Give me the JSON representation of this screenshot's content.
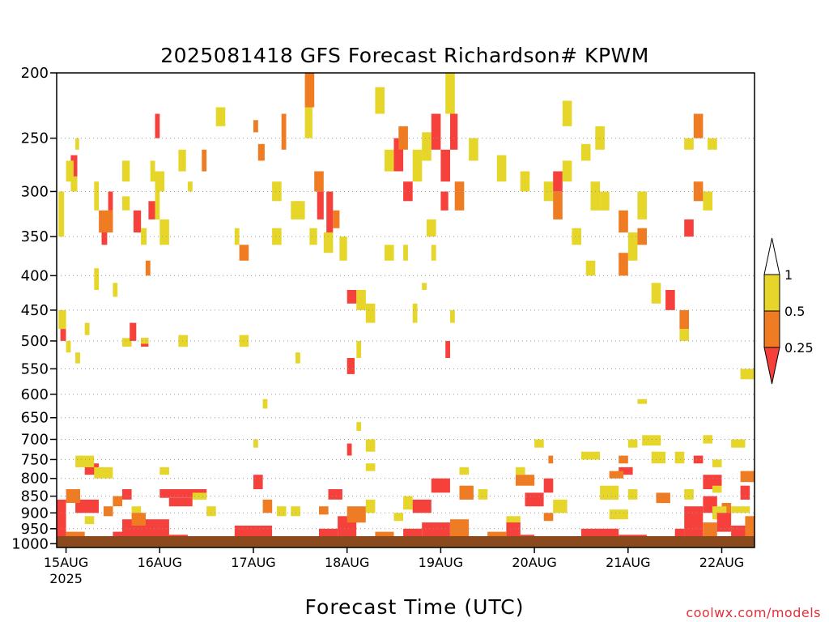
{
  "chart_data": {
    "type": "heatmap",
    "title": "2025081418 GFS Forecast Richardson# KPWM",
    "xlabel": "Forecast Time (UTC)",
    "ylabel": "",
    "credit": "coolwx.com/models",
    "y_scale": "log-pressure (inverted)",
    "ylim_hPa": [
      1013,
      200
    ],
    "xlim_day_offset": [
      -0.1,
      7.35
    ],
    "grid": "dotted horizontal lines at pressure levels",
    "y_ticks": [
      200,
      250,
      300,
      350,
      400,
      450,
      500,
      550,
      600,
      650,
      700,
      750,
      800,
      850,
      900,
      950,
      1000
    ],
    "x_ticks": [
      {
        "day": 0,
        "label": "15AUG",
        "sublabel": "2025"
      },
      {
        "day": 1,
        "label": "16AUG"
      },
      {
        "day": 2,
        "label": "17AUG"
      },
      {
        "day": 3,
        "label": "18AUG"
      },
      {
        "day": 4,
        "label": "19AUG"
      },
      {
        "day": 5,
        "label": "20AUG"
      },
      {
        "day": 6,
        "label": "21AUG"
      },
      {
        "day": 7,
        "label": "22AUG"
      }
    ],
    "colorbar": {
      "levels": [
        "1",
        "0.5",
        "0.25"
      ],
      "bins": [
        {
          "range": "> 1",
          "color": "#ffffff"
        },
        {
          "range": "0.5 - 1",
          "color": "#e6d62a"
        },
        {
          "range": "0.25 - 0.5",
          "color": "#ef7b22"
        },
        {
          "range": "< 0.25",
          "color": "#f5403c"
        }
      ]
    },
    "ground_color": "#8b4a1e",
    "cells": [
      [
        -0.08,
        -0.02,
        300,
        350,
        "Y"
      ],
      [
        -0.08,
        0.0,
        450,
        480,
        "Y"
      ],
      [
        -0.06,
        0.0,
        480,
        500,
        "R"
      ],
      [
        0.05,
        0.12,
        265,
        285,
        "R"
      ],
      [
        0.0,
        0.08,
        270,
        290,
        "Y"
      ],
      [
        0.05,
        0.12,
        285,
        300,
        "Y"
      ],
      [
        0.1,
        0.14,
        250,
        260,
        "Y"
      ],
      [
        0.3,
        0.35,
        290,
        320,
        "Y"
      ],
      [
        0.35,
        0.5,
        320,
        345,
        "O"
      ],
      [
        0.45,
        0.5,
        300,
        320,
        "R"
      ],
      [
        0.38,
        0.44,
        345,
        360,
        "R"
      ],
      [
        0.6,
        0.68,
        270,
        290,
        "Y"
      ],
      [
        0.6,
        0.68,
        305,
        320,
        "Y"
      ],
      [
        0.72,
        0.8,
        320,
        345,
        "R"
      ],
      [
        0.8,
        0.86,
        340,
        360,
        "Y"
      ],
      [
        0.88,
        0.95,
        310,
        330,
        "R"
      ],
      [
        0.9,
        0.95,
        270,
        290,
        "Y"
      ],
      [
        0.95,
        1.0,
        300,
        330,
        "Y"
      ],
      [
        0.95,
        1.0,
        230,
        250,
        "R"
      ],
      [
        0.85,
        0.9,
        380,
        400,
        "O"
      ],
      [
        1.2,
        1.28,
        260,
        280,
        "Y"
      ],
      [
        0.8,
        0.88,
        495,
        510,
        "R"
      ],
      [
        0.8,
        0.88,
        495,
        505,
        "Y"
      ],
      [
        0.6,
        0.7,
        495,
        510,
        "Y"
      ],
      [
        0.68,
        0.75,
        470,
        500,
        "R"
      ],
      [
        1.2,
        1.3,
        490,
        510,
        "Y"
      ],
      [
        0.0,
        0.05,
        500,
        520,
        "Y"
      ],
      [
        0.1,
        0.15,
        520,
        540,
        "Y"
      ],
      [
        0.3,
        0.35,
        390,
        420,
        "Y"
      ],
      [
        1.6,
        1.7,
        225,
        240,
        "Y"
      ],
      [
        1.85,
        1.95,
        490,
        510,
        "Y"
      ],
      [
        2.0,
        2.05,
        235,
        245,
        "O"
      ],
      [
        2.05,
        2.12,
        255,
        270,
        "O"
      ],
      [
        2.4,
        2.5,
        310,
        330,
        "Y"
      ],
      [
        2.2,
        2.3,
        290,
        310,
        "Y"
      ],
      [
        2.3,
        2.35,
        230,
        260,
        "O"
      ],
      [
        2.45,
        2.55,
        310,
        330,
        "Y"
      ],
      [
        2.55,
        2.63,
        225,
        250,
        "Y"
      ],
      [
        2.55,
        2.65,
        200,
        225,
        "O"
      ],
      [
        2.65,
        2.75,
        280,
        300,
        "O"
      ],
      [
        2.68,
        2.75,
        300,
        330,
        "R"
      ],
      [
        2.6,
        2.68,
        340,
        360,
        "Y"
      ],
      [
        2.75,
        2.85,
        345,
        370,
        "Y"
      ],
      [
        2.78,
        2.85,
        300,
        345,
        "R"
      ],
      [
        2.85,
        2.92,
        320,
        340,
        "O"
      ],
      [
        2.92,
        3.0,
        350,
        380,
        "Y"
      ],
      [
        3.0,
        3.1,
        420,
        440,
        "R"
      ],
      [
        3.1,
        3.2,
        420,
        450,
        "Y"
      ],
      [
        3.2,
        3.3,
        440,
        470,
        "Y"
      ],
      [
        3.1,
        3.15,
        500,
        530,
        "Y"
      ],
      [
        3.0,
        3.08,
        530,
        560,
        "R"
      ],
      [
        3.3,
        3.4,
        210,
        230,
        "Y"
      ],
      [
        3.4,
        3.5,
        260,
        280,
        "Y"
      ],
      [
        3.5,
        3.6,
        250,
        280,
        "R"
      ],
      [
        3.55,
        3.65,
        240,
        260,
        "O"
      ],
      [
        3.6,
        3.7,
        290,
        310,
        "R"
      ],
      [
        3.7,
        3.8,
        260,
        290,
        "Y"
      ],
      [
        3.8,
        3.9,
        245,
        270,
        "Y"
      ],
      [
        3.9,
        4.0,
        230,
        260,
        "R"
      ],
      [
        4.0,
        4.1,
        260,
        290,
        "R"
      ],
      [
        4.05,
        4.15,
        200,
        230,
        "Y"
      ],
      [
        4.1,
        4.18,
        230,
        260,
        "R"
      ],
      [
        4.15,
        4.25,
        290,
        320,
        "O"
      ],
      [
        4.0,
        4.08,
        300,
        320,
        "R"
      ],
      [
        4.05,
        4.1,
        500,
        530,
        "R"
      ],
      [
        3.85,
        3.95,
        330,
        350,
        "Y"
      ],
      [
        3.6,
        3.65,
        360,
        380,
        "Y"
      ],
      [
        4.3,
        4.4,
        250,
        270,
        "Y"
      ],
      [
        4.6,
        4.7,
        265,
        290,
        "Y"
      ],
      [
        4.85,
        4.95,
        280,
        300,
        "Y"
      ],
      [
        5.1,
        5.2,
        290,
        310,
        "Y"
      ],
      [
        5.2,
        5.3,
        280,
        300,
        "R"
      ],
      [
        5.2,
        5.3,
        300,
        330,
        "O"
      ],
      [
        5.3,
        5.4,
        220,
        240,
        "Y"
      ],
      [
        5.3,
        5.4,
        270,
        290,
        "Y"
      ],
      [
        5.5,
        5.6,
        255,
        270,
        "Y"
      ],
      [
        5.65,
        5.75,
        240,
        260,
        "Y"
      ],
      [
        5.7,
        5.8,
        300,
        320,
        "Y"
      ],
      [
        5.9,
        6.0,
        320,
        345,
        "O"
      ],
      [
        6.0,
        6.1,
        345,
        380,
        "Y"
      ],
      [
        6.1,
        6.2,
        300,
        330,
        "Y"
      ],
      [
        6.1,
        6.2,
        340,
        360,
        "O"
      ],
      [
        6.25,
        6.35,
        410,
        440,
        "Y"
      ],
      [
        6.4,
        6.5,
        420,
        450,
        "R"
      ],
      [
        6.6,
        6.7,
        330,
        350,
        "R"
      ],
      [
        6.7,
        6.8,
        290,
        310,
        "O"
      ],
      [
        6.7,
        6.8,
        230,
        250,
        "O"
      ],
      [
        6.6,
        6.7,
        250,
        260,
        "Y"
      ],
      [
        6.8,
        6.9,
        300,
        320,
        "Y"
      ],
      [
        6.85,
        6.95,
        250,
        260,
        "Y"
      ],
      [
        7.2,
        7.35,
        550,
        570,
        "Y"
      ],
      [
        6.55,
        6.65,
        450,
        480,
        "O"
      ],
      [
        6.55,
        6.65,
        480,
        500,
        "Y"
      ],
      [
        5.4,
        5.5,
        340,
        360,
        "Y"
      ],
      [
        5.6,
        5.7,
        290,
        320,
        "Y"
      ],
      [
        1.3,
        1.35,
        290,
        300,
        "Y"
      ],
      [
        1.45,
        1.5,
        260,
        280,
        "O"
      ],
      [
        1.85,
        1.95,
        360,
        380,
        "O"
      ],
      [
        2.2,
        2.3,
        340,
        360,
        "Y"
      ],
      [
        2.45,
        2.5,
        520,
        540,
        "Y"
      ],
      [
        0.95,
        1.05,
        280,
        300,
        "Y"
      ],
      [
        1.0,
        1.1,
        330,
        360,
        "Y"
      ],
      [
        5.55,
        5.65,
        380,
        400,
        "Y"
      ],
      [
        5.9,
        6.0,
        370,
        400,
        "O"
      ],
      [
        3.4,
        3.5,
        360,
        380,
        "Y"
      ],
      [
        3.8,
        3.85,
        410,
        420,
        "Y"
      ],
      [
        3.7,
        3.75,
        440,
        470,
        "Y"
      ],
      [
        3.9,
        3.95,
        360,
        380,
        "Y"
      ],
      [
        4.1,
        4.15,
        450,
        470,
        "Y"
      ],
      [
        1.8,
        1.85,
        340,
        360,
        "Y"
      ],
      [
        0.5,
        0.55,
        410,
        430,
        "Y"
      ],
      [
        0.2,
        0.25,
        470,
        490,
        "Y"
      ],
      [
        2.0,
        2.05,
        700,
        720,
        "Y"
      ],
      [
        3.1,
        3.15,
        660,
        680,
        "Y"
      ],
      [
        3.2,
        3.3,
        700,
        730,
        "Y"
      ],
      [
        3.0,
        3.05,
        710,
        740,
        "R"
      ],
      [
        2.1,
        2.15,
        610,
        630,
        "Y"
      ],
      [
        0.2,
        0.35,
        760,
        790,
        "R"
      ],
      [
        0.1,
        0.3,
        740,
        770,
        "Y"
      ],
      [
        0.3,
        0.5,
        770,
        800,
        "Y"
      ],
      [
        1.0,
        1.1,
        770,
        790,
        "Y"
      ],
      [
        3.2,
        3.3,
        760,
        780,
        "Y"
      ],
      [
        4.8,
        4.9,
        770,
        790,
        "Y"
      ],
      [
        5.0,
        5.1,
        700,
        720,
        "Y"
      ],
      [
        5.15,
        5.2,
        740,
        760,
        "O"
      ],
      [
        5.5,
        5.7,
        730,
        750,
        "Y"
      ],
      [
        5.9,
        6.0,
        740,
        760,
        "O"
      ],
      [
        6.0,
        6.1,
        700,
        720,
        "Y"
      ],
      [
        6.15,
        6.35,
        690,
        715,
        "Y"
      ],
      [
        6.25,
        6.4,
        730,
        760,
        "Y"
      ],
      [
        6.5,
        6.6,
        730,
        760,
        "Y"
      ],
      [
        6.1,
        6.2,
        610,
        620,
        "Y"
      ],
      [
        7.1,
        7.25,
        700,
        720,
        "Y"
      ],
      [
        6.7,
        6.8,
        740,
        760,
        "R"
      ],
      [
        6.8,
        6.9,
        690,
        710,
        "Y"
      ],
      [
        6.9,
        7.0,
        750,
        770,
        "Y"
      ],
      [
        7.2,
        7.35,
        780,
        810,
        "O"
      ],
      [
        4.2,
        4.3,
        770,
        790,
        "Y"
      ],
      [
        5.9,
        6.05,
        770,
        790,
        "R"
      ],
      [
        0.5,
        0.6,
        850,
        880,
        "O"
      ],
      [
        0.6,
        0.7,
        830,
        860,
        "R"
      ],
      [
        1.0,
        1.5,
        830,
        855,
        "R"
      ],
      [
        1.1,
        1.35,
        855,
        880,
        "R"
      ],
      [
        1.35,
        1.5,
        840,
        860,
        "Y"
      ],
      [
        2.0,
        2.1,
        790,
        830,
        "R"
      ],
      [
        2.1,
        2.2,
        860,
        900,
        "O"
      ],
      [
        2.25,
        2.35,
        880,
        910,
        "Y"
      ],
      [
        2.8,
        2.95,
        830,
        860,
        "R"
      ],
      [
        3.2,
        3.3,
        860,
        900,
        "Y"
      ],
      [
        3.6,
        3.7,
        850,
        890,
        "Y"
      ],
      [
        3.9,
        4.1,
        800,
        840,
        "R"
      ],
      [
        3.7,
        3.9,
        860,
        900,
        "R"
      ],
      [
        4.2,
        4.35,
        820,
        860,
        "O"
      ],
      [
        4.4,
        4.5,
        830,
        860,
        "Y"
      ],
      [
        4.8,
        5.0,
        790,
        820,
        "O"
      ],
      [
        4.9,
        5.1,
        840,
        880,
        "R"
      ],
      [
        5.1,
        5.2,
        800,
        840,
        "R"
      ],
      [
        5.2,
        5.35,
        860,
        900,
        "Y"
      ],
      [
        5.7,
        5.9,
        820,
        860,
        "Y"
      ],
      [
        6.0,
        6.1,
        830,
        860,
        "Y"
      ],
      [
        6.3,
        6.45,
        840,
        870,
        "O"
      ],
      [
        6.6,
        6.7,
        830,
        860,
        "Y"
      ],
      [
        6.8,
        7.0,
        790,
        830,
        "R"
      ],
      [
        6.8,
        6.95,
        850,
        900,
        "R"
      ],
      [
        7.0,
        7.1,
        870,
        910,
        "O"
      ],
      [
        7.2,
        7.3,
        820,
        860,
        "R"
      ],
      [
        6.9,
        7.0,
        820,
        840,
        "Y"
      ],
      [
        5.8,
        5.95,
        780,
        800,
        "O"
      ],
      [
        0.1,
        0.35,
        860,
        900,
        "R"
      ],
      [
        0.0,
        0.15,
        830,
        870,
        "O"
      ],
      [
        0.4,
        0.5,
        880,
        910,
        "O"
      ],
      [
        0.2,
        0.3,
        910,
        935,
        "Y"
      ],
      [
        0.7,
        0.8,
        880,
        910,
        "Y"
      ],
      [
        1.5,
        1.6,
        880,
        910,
        "Y"
      ],
      [
        2.4,
        2.5,
        880,
        910,
        "Y"
      ],
      [
        2.7,
        2.8,
        880,
        905,
        "O"
      ],
      [
        3.5,
        3.6,
        900,
        925,
        "Y"
      ],
      [
        4.7,
        4.85,
        910,
        935,
        "Y"
      ],
      [
        5.1,
        5.2,
        900,
        925,
        "O"
      ],
      [
        5.8,
        6.0,
        890,
        920,
        "Y"
      ],
      [
        6.9,
        7.05,
        880,
        920,
        "Y"
      ],
      [
        7.1,
        7.3,
        880,
        900,
        "Y"
      ],
      [
        0.5,
        0.6,
        960,
        995,
        "R"
      ],
      [
        0.6,
        1.1,
        920,
        985,
        "R"
      ],
      [
        0.7,
        0.85,
        900,
        940,
        "O"
      ],
      [
        1.1,
        1.3,
        970,
        995,
        "R"
      ],
      [
        1.8,
        2.2,
        940,
        995,
        "R"
      ],
      [
        2.2,
        2.7,
        985,
        1000,
        "R"
      ],
      [
        2.7,
        2.9,
        950,
        995,
        "R"
      ],
      [
        2.9,
        3.1,
        910,
        990,
        "R"
      ],
      [
        3.0,
        3.2,
        880,
        930,
        "O"
      ],
      [
        3.3,
        3.5,
        960,
        995,
        "O"
      ],
      [
        3.6,
        3.8,
        950,
        995,
        "R"
      ],
      [
        3.8,
        4.1,
        930,
        995,
        "R"
      ],
      [
        4.1,
        4.3,
        920,
        980,
        "O"
      ],
      [
        4.3,
        4.5,
        975,
        995,
        "R"
      ],
      [
        4.5,
        4.7,
        960,
        985,
        "O"
      ],
      [
        4.7,
        4.85,
        930,
        980,
        "R"
      ],
      [
        4.85,
        5.0,
        970,
        995,
        "R"
      ],
      [
        5.0,
        5.2,
        985,
        1000,
        "O"
      ],
      [
        5.2,
        5.5,
        975,
        995,
        "R"
      ],
      [
        5.5,
        5.9,
        950,
        995,
        "R"
      ],
      [
        5.9,
        6.2,
        970,
        995,
        "R"
      ],
      [
        6.2,
        6.5,
        990,
        1000,
        "O"
      ],
      [
        6.5,
        6.6,
        950,
        980,
        "R"
      ],
      [
        6.6,
        6.8,
        880,
        995,
        "R"
      ],
      [
        6.8,
        6.95,
        930,
        995,
        "O"
      ],
      [
        6.95,
        7.1,
        900,
        960,
        "R"
      ],
      [
        7.1,
        7.25,
        940,
        990,
        "R"
      ],
      [
        7.25,
        7.35,
        910,
        995,
        "O"
      ],
      [
        -0.1,
        0.0,
        860,
        990,
        "R"
      ],
      [
        0.0,
        0.2,
        960,
        995,
        "O"
      ],
      [
        1.3,
        1.6,
        975,
        995,
        "O"
      ],
      [
        1.6,
        1.8,
        985,
        1000,
        "Y"
      ]
    ]
  }
}
